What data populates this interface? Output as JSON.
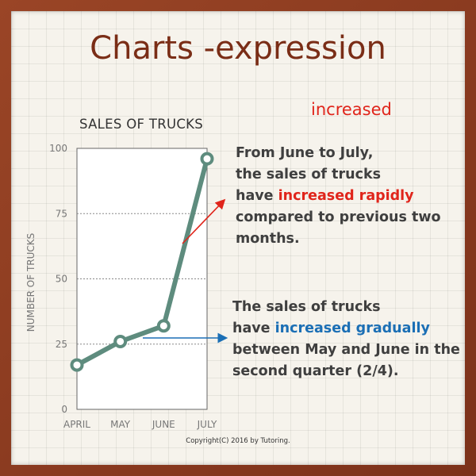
{
  "page_title": "Charts -expression",
  "keyword": "increased",
  "note1": {
    "line1": "From June to July,",
    "line2": "the sales of trucks",
    "line3_prefix": "have ",
    "line3_highlight": "increased rapidly",
    "line4": "compared to previous two",
    "line5": "months."
  },
  "note2": {
    "line1": "The sales of trucks",
    "line2_prefix": "have ",
    "line2_highlight": "increased gradually",
    "line3": "between May and June in the",
    "line4": "second quarter (2/4)."
  },
  "copyright": "Copyright(C) 2016 by Tutoring.",
  "colors": {
    "frame": "#8a3a1e",
    "title": "#7a2d16",
    "line": "#5e8c7e",
    "red": "#e0251b",
    "blue": "#1b6fb5"
  },
  "chart_data": {
    "type": "line",
    "title": "SALES OF TRUCKS",
    "xlabel": "",
    "ylabel": "NUMBER OF TRUCKS",
    "categories": [
      "APRIL",
      "MAY",
      "JUNE",
      "JULY"
    ],
    "series": [
      {
        "values": [
          17,
          26,
          32,
          96
        ]
      }
    ],
    "ylim": [
      0,
      100
    ],
    "yticks": [
      0,
      25,
      50,
      75,
      100
    ],
    "grid": "dotted horizontal at 25, 50, 75"
  }
}
